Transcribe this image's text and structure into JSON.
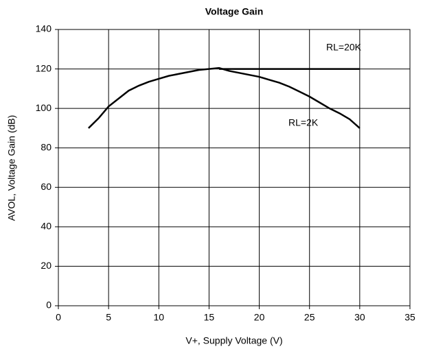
{
  "chart_data": {
    "type": "line",
    "title": "Voltage Gain",
    "xlabel": "V+, Supply Voltage (V)",
    "ylabel": "AVOL, Voltage Gain (dB)",
    "xlim": [
      0,
      35
    ],
    "xticks": [
      0,
      5,
      10,
      15,
      20,
      25,
      30,
      35
    ],
    "ylim": [
      0,
      140
    ],
    "yticks": [
      0,
      20,
      40,
      60,
      80,
      100,
      120,
      140
    ],
    "grid": true,
    "series": [
      {
        "name": "RL=2K",
        "color": "#000000",
        "x": [
          3,
          4,
          5,
          6,
          7,
          8,
          9,
          10,
          11,
          12,
          13,
          14,
          15,
          16,
          17,
          18,
          19,
          20,
          21,
          22,
          23,
          24,
          25,
          26,
          27,
          28,
          29,
          30
        ],
        "values": [
          90,
          95,
          101,
          105,
          109,
          111.5,
          113.5,
          115,
          116.5,
          117.5,
          118.5,
          119.5,
          120,
          120.5,
          119,
          118,
          117,
          116,
          114.5,
          113,
          111,
          108.5,
          106,
          103,
          100,
          97.5,
          94.5,
          90
        ]
      },
      {
        "name": "RL=20K",
        "color": "#000000",
        "x": [
          16,
          30
        ],
        "values": [
          120,
          120
        ]
      }
    ]
  }
}
